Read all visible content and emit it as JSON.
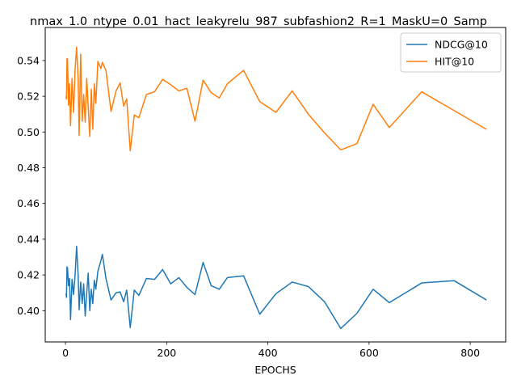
{
  "chart_data": {
    "type": "line",
    "title": "nmax_1.0_ntype_0.01_hact_leakyrelu_987_subfashion2_R=1_MaskU=0_Samp",
    "xlabel": "EPOCHS",
    "ylabel": "",
    "xlim": [
      -40,
      870
    ],
    "ylim": [
      0.3825,
      0.5585
    ],
    "xticks": [
      0,
      200,
      400,
      600,
      800
    ],
    "yticks": [
      0.4,
      0.42,
      0.44,
      0.46,
      0.48,
      0.5,
      0.52,
      0.54
    ],
    "xtick_labels": [
      "0",
      "200",
      "400",
      "600",
      "800"
    ],
    "ytick_labels": [
      "0.40",
      "0.42",
      "0.44",
      "0.46",
      "0.48",
      "0.50",
      "0.52",
      "0.54"
    ],
    "grid": false,
    "legend": {
      "position": "top-right",
      "entries": [
        "NDCG@10",
        "HIT@10"
      ]
    },
    "series": [
      {
        "name": "NDCG@10",
        "color": "#1f77b4",
        "points": [
          [
            1,
            0.4095
          ],
          [
            2,
            0.4075
          ],
          [
            3,
            0.4245
          ],
          [
            4,
            0.424
          ],
          [
            6,
            0.414
          ],
          [
            8,
            0.418
          ],
          [
            10,
            0.395
          ],
          [
            13,
            0.4175
          ],
          [
            16,
            0.409
          ],
          [
            19,
            0.42
          ],
          [
            22,
            0.436
          ],
          [
            25,
            0.42
          ],
          [
            27,
            0.4005
          ],
          [
            30,
            0.416
          ],
          [
            33,
            0.404
          ],
          [
            36,
            0.415
          ],
          [
            39,
            0.397
          ],
          [
            42,
            0.41
          ],
          [
            45,
            0.421
          ],
          [
            48,
            0.4
          ],
          [
            51,
            0.412
          ],
          [
            54,
            0.404
          ],
          [
            57,
            0.417
          ],
          [
            60,
            0.412
          ],
          [
            64,
            0.422
          ],
          [
            70,
            0.428
          ],
          [
            73,
            0.4315
          ],
          [
            80,
            0.418
          ],
          [
            90,
            0.406
          ],
          [
            100,
            0.41
          ],
          [
            108,
            0.4105
          ],
          [
            115,
            0.405
          ],
          [
            121,
            0.4115
          ],
          [
            128,
            0.3905
          ],
          [
            136,
            0.4115
          ],
          [
            145,
            0.4085
          ],
          [
            160,
            0.418
          ],
          [
            176,
            0.4175
          ],
          [
            192,
            0.423
          ],
          [
            208,
            0.415
          ],
          [
            224,
            0.4185
          ],
          [
            240,
            0.413
          ],
          [
            256,
            0.409
          ],
          [
            272,
            0.427
          ],
          [
            288,
            0.414
          ],
          [
            304,
            0.412
          ],
          [
            320,
            0.4185
          ],
          [
            352,
            0.4195
          ],
          [
            384,
            0.398
          ],
          [
            416,
            0.4095
          ],
          [
            448,
            0.416
          ],
          [
            480,
            0.4135
          ],
          [
            512,
            0.405
          ],
          [
            544,
            0.39
          ],
          [
            576,
            0.3985
          ],
          [
            608,
            0.412
          ],
          [
            640,
            0.4045
          ],
          [
            704,
            0.4155
          ],
          [
            768,
            0.4168
          ],
          [
            832,
            0.406
          ]
        ]
      },
      {
        "name": "HIT@10",
        "color": "#ff7f0e",
        "points": [
          [
            1,
            0.52
          ],
          [
            2,
            0.5185
          ],
          [
            3,
            0.541
          ],
          [
            4,
            0.541
          ],
          [
            6,
            0.515
          ],
          [
            8,
            0.527
          ],
          [
            10,
            0.5035
          ],
          [
            13,
            0.53
          ],
          [
            16,
            0.511
          ],
          [
            19,
            0.535
          ],
          [
            22,
            0.5475
          ],
          [
            25,
            0.53
          ],
          [
            27,
            0.498
          ],
          [
            30,
            0.5435
          ],
          [
            33,
            0.506
          ],
          [
            36,
            0.521
          ],
          [
            39,
            0.5055
          ],
          [
            42,
            0.53
          ],
          [
            45,
            0.514
          ],
          [
            48,
            0.4975
          ],
          [
            51,
            0.524
          ],
          [
            54,
            0.5015
          ],
          [
            57,
            0.527
          ],
          [
            60,
            0.516
          ],
          [
            64,
            0.5395
          ],
          [
            70,
            0.5355
          ],
          [
            73,
            0.539
          ],
          [
            80,
            0.5345
          ],
          [
            90,
            0.5115
          ],
          [
            100,
            0.523
          ],
          [
            108,
            0.5275
          ],
          [
            115,
            0.5145
          ],
          [
            121,
            0.5185
          ],
          [
            128,
            0.4895
          ],
          [
            136,
            0.5095
          ],
          [
            145,
            0.508
          ],
          [
            160,
            0.521
          ],
          [
            176,
            0.5225
          ],
          [
            192,
            0.5295
          ],
          [
            208,
            0.5265
          ],
          [
            224,
            0.523
          ],
          [
            240,
            0.5245
          ],
          [
            256,
            0.506
          ],
          [
            272,
            0.529
          ],
          [
            288,
            0.522
          ],
          [
            304,
            0.519
          ],
          [
            320,
            0.527
          ],
          [
            352,
            0.5345
          ],
          [
            384,
            0.517
          ],
          [
            416,
            0.511
          ],
          [
            448,
            0.523
          ],
          [
            480,
            0.51
          ],
          [
            512,
            0.4995
          ],
          [
            544,
            0.49
          ],
          [
            576,
            0.4935
          ],
          [
            608,
            0.5155
          ],
          [
            640,
            0.5025
          ],
          [
            704,
            0.5225
          ],
          [
            768,
            0.512
          ],
          [
            832,
            0.5015
          ]
        ]
      }
    ]
  }
}
